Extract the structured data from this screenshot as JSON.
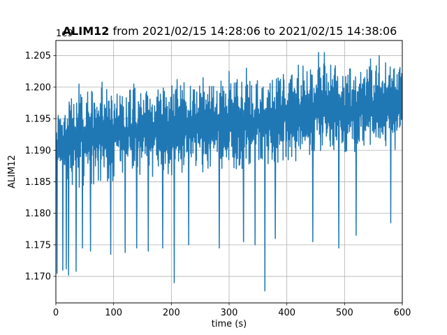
{
  "chart_data": {
    "type": "line",
    "title_bold": "ALIM12",
    "title_rest": " from 2021/02/15 14:28:06 to 2021/02/15 14:38:06",
    "xlabel": "time (s)",
    "ylabel": "ALIM12",
    "y_offset_label": "1e9",
    "xlim": [
      0,
      600
    ],
    "ylim": [
      1.1658,
      1.2074
    ],
    "x_ticks": [
      0,
      100,
      200,
      300,
      400,
      500,
      600
    ],
    "y_ticks": [
      1.17,
      1.175,
      1.18,
      1.185,
      1.19,
      1.195,
      1.2,
      1.205
    ],
    "y_tick_labels": [
      "1.170",
      "1.175",
      "1.180",
      "1.185",
      "1.190",
      "1.195",
      "1.200",
      "1.205"
    ],
    "grid": true,
    "line_color": "#1f77b4",
    "series": [
      {
        "x": [
          0,
          25,
          50,
          75,
          100,
          125,
          150,
          175,
          200,
          225,
          250,
          275,
          300,
          325,
          350,
          375,
          400,
          425,
          450,
          475,
          500,
          525,
          550,
          575,
          600
        ],
        "upper": [
          1.1955,
          1.1985,
          1.1995,
          1.1998,
          1.2005,
          1.2002,
          1.2,
          1.2,
          1.2005,
          1.2012,
          1.2003,
          1.201,
          1.2012,
          1.2015,
          1.2013,
          1.2018,
          1.2022,
          1.2035,
          1.204,
          1.2043,
          1.203,
          1.204,
          1.2035,
          1.204,
          1.203
        ],
        "lower": [
          1.184,
          1.183,
          1.184,
          1.1845,
          1.185,
          1.1848,
          1.185,
          1.1855,
          1.186,
          1.1858,
          1.1865,
          1.1868,
          1.187,
          1.187,
          1.1878,
          1.1878,
          1.188,
          1.1885,
          1.189,
          1.1895,
          1.1895,
          1.1895,
          1.1905,
          1.1905,
          1.189
        ],
        "core_upper": [
          1.1935,
          1.1955,
          1.196,
          1.1965,
          1.197,
          1.1972,
          1.1968,
          1.197,
          1.1975,
          1.1978,
          1.1975,
          1.198,
          1.1982,
          1.1985,
          1.1984,
          1.1988,
          1.199,
          1.1998,
          1.2,
          1.2003,
          1.1995,
          1.2005,
          1.2005,
          1.2008,
          1.2
        ],
        "core_lower": [
          1.188,
          1.1875,
          1.188,
          1.1885,
          1.189,
          1.189,
          1.1888,
          1.1892,
          1.1895,
          1.1895,
          1.1898,
          1.1902,
          1.1905,
          1.1905,
          1.191,
          1.1912,
          1.1915,
          1.192,
          1.1922,
          1.1928,
          1.1925,
          1.193,
          1.1935,
          1.1935,
          1.1925
        ],
        "dips": [
          [
            2,
            1.1705
          ],
          [
            12,
            1.171
          ],
          [
            18,
            1.1712
          ],
          [
            22,
            1.1702
          ],
          [
            35,
            1.1708
          ],
          [
            46,
            1.1745
          ],
          [
            60,
            1.174
          ],
          [
            80,
            1.174
          ],
          [
            95,
            1.1735
          ],
          [
            120,
            1.1738
          ],
          [
            140,
            1.1745
          ],
          [
            160,
            1.174
          ],
          [
            185,
            1.1745
          ],
          [
            205,
            1.169
          ],
          [
            230,
            1.175
          ],
          [
            255,
            1.174
          ],
          [
            283,
            1.1745
          ],
          [
            300,
            1.1725
          ],
          [
            325,
            1.1755
          ],
          [
            345,
            1.175
          ],
          [
            362,
            1.1677
          ],
          [
            380,
            1.176
          ],
          [
            420,
            1.174
          ],
          [
            445,
            1.1755
          ],
          [
            490,
            1.1745
          ],
          [
            520,
            1.1765
          ],
          [
            545,
            1.178
          ],
          [
            580,
            1.1785
          ]
        ],
        "peaks": [
          [
            40,
            1.2005
          ],
          [
            80,
            1.2008
          ],
          [
            135,
            1.2005
          ],
          [
            210,
            1.2012
          ],
          [
            255,
            1.2015
          ],
          [
            300,
            1.2025
          ],
          [
            330,
            1.203
          ],
          [
            420,
            1.2035
          ],
          [
            455,
            1.2055
          ],
          [
            465,
            1.2055
          ],
          [
            545,
            1.2045
          ],
          [
            560,
            1.205
          ]
        ]
      }
    ]
  }
}
